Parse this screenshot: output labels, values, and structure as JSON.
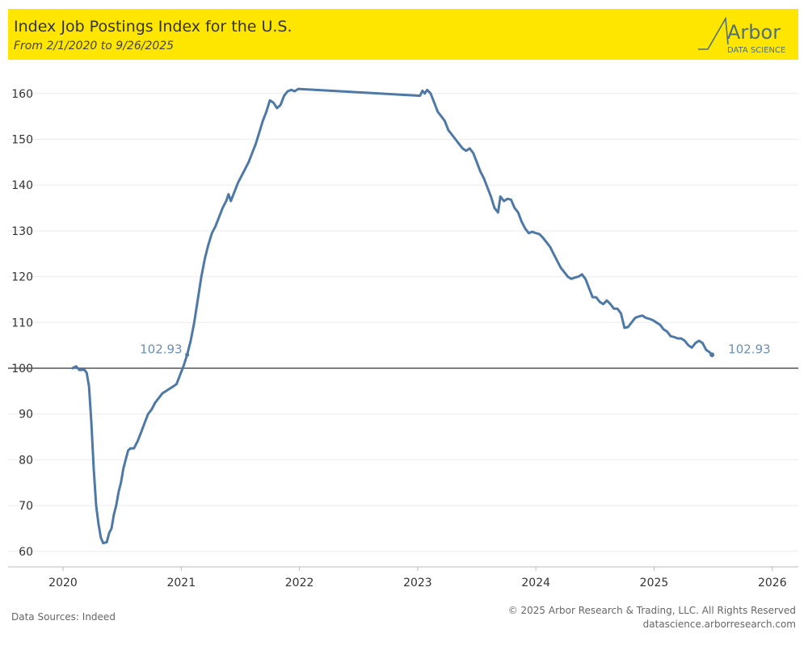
{
  "header": {
    "title": "Index Job Postings Index for the U.S.",
    "subtitle": "From 2/1/2020 to 9/26/2025",
    "background_color": "#ffe600",
    "logo": {
      "name": "Arbor",
      "tagline": "DATA SCIENCE",
      "color": "#4f7078"
    }
  },
  "footer": {
    "source": "Data Sources: Indeed",
    "copyright": "© 2025 Arbor Research & Trading, LLC. All Rights Reserved",
    "website": "datascience.arborresearch.com"
  },
  "chart_data": {
    "type": "line",
    "title": "Index Job Postings Index for the U.S.",
    "subtitle": "From 2/1/2020 to 9/26/2025",
    "xlabel": "",
    "ylabel": "",
    "x_ticks": [
      "2020",
      "2021",
      "2022",
      "2023",
      "2024",
      "2025",
      "2026"
    ],
    "y_ticks": [
      60,
      70,
      80,
      90,
      100,
      110,
      120,
      130,
      140,
      150,
      160
    ],
    "xlim": [
      2020,
      2026.3
    ],
    "ylim": [
      58,
      166
    ],
    "grid": "horizontal",
    "reference_line": 100,
    "line_color": "#4e79a7",
    "label_color": "#6b8fb5",
    "series": [
      {
        "points": [
          [
            2020.08,
            100.0
          ],
          [
            2020.11,
            100.4
          ],
          [
            2020.14,
            99.6
          ],
          [
            2020.18,
            99.7
          ],
          [
            2020.2,
            99.0
          ],
          [
            2020.22,
            96.0
          ],
          [
            2020.24,
            88.0
          ],
          [
            2020.26,
            78.0
          ],
          [
            2020.28,
            70.0
          ],
          [
            2020.3,
            66.0
          ],
          [
            2020.32,
            63.0
          ],
          [
            2020.34,
            61.8
          ],
          [
            2020.37,
            62.0
          ],
          [
            2020.39,
            64.0
          ],
          [
            2020.41,
            65.0
          ],
          [
            2020.43,
            68.0
          ],
          [
            2020.45,
            70.0
          ],
          [
            2020.47,
            73.0
          ],
          [
            2020.49,
            75.0
          ],
          [
            2020.51,
            78.0
          ],
          [
            2020.53,
            80.0
          ],
          [
            2020.55,
            82.0
          ],
          [
            2020.57,
            82.5
          ],
          [
            2020.6,
            82.5
          ],
          [
            2020.63,
            84.0
          ],
          [
            2020.66,
            86.0
          ],
          [
            2020.69,
            88.0
          ],
          [
            2020.72,
            90.0
          ],
          [
            2020.75,
            91.0
          ],
          [
            2020.78,
            92.5
          ],
          [
            2020.81,
            93.5
          ],
          [
            2020.84,
            94.5
          ],
          [
            2020.87,
            95.0
          ],
          [
            2020.9,
            95.5
          ],
          [
            2020.93,
            96.0
          ],
          [
            2020.96,
            96.5
          ],
          [
            2020.99,
            98.5
          ],
          [
            2021.02,
            100.5
          ],
          [
            2021.05,
            102.93
          ],
          [
            2021.08,
            106.0
          ],
          [
            2021.11,
            110.0
          ],
          [
            2021.14,
            115.0
          ],
          [
            2021.17,
            120.0
          ],
          [
            2021.2,
            124.0
          ],
          [
            2021.23,
            127.0
          ],
          [
            2021.26,
            129.5
          ],
          [
            2021.29,
            131.0
          ],
          [
            2021.32,
            133.0
          ],
          [
            2021.35,
            135.0
          ],
          [
            2021.38,
            136.5
          ],
          [
            2021.4,
            138.0
          ],
          [
            2021.42,
            136.5
          ],
          [
            2021.45,
            138.5
          ],
          [
            2021.48,
            140.5
          ],
          [
            2021.51,
            142.0
          ],
          [
            2021.54,
            143.5
          ],
          [
            2021.57,
            145.0
          ],
          [
            2021.6,
            147.0
          ],
          [
            2021.63,
            149.0
          ],
          [
            2021.66,
            151.5
          ],
          [
            2021.69,
            154.0
          ],
          [
            2021.72,
            156.0
          ],
          [
            2021.75,
            158.5
          ],
          [
            2021.78,
            158.0
          ],
          [
            2021.81,
            156.8
          ],
          [
            2021.84,
            157.5
          ],
          [
            2021.87,
            159.5
          ],
          [
            2021.9,
            160.5
          ],
          [
            2021.93,
            160.8
          ],
          [
            2021.96,
            160.5
          ],
          [
            2021.99,
            161.0
          ],
          [
            2022.02,
            159.5
          ],
          [
            2022.04,
            160.6
          ],
          [
            2022.06,
            160.0
          ],
          [
            2022.08,
            160.8
          ],
          [
            2022.11,
            160.0
          ],
          [
            2022.14,
            158.0
          ],
          [
            2022.17,
            156.0
          ],
          [
            2022.2,
            155.0
          ],
          [
            2022.23,
            154.0
          ],
          [
            2022.26,
            152.0
          ],
          [
            2022.29,
            151.0
          ],
          [
            2022.32,
            150.0
          ],
          [
            2022.35,
            149.0
          ],
          [
            2022.38,
            148.0
          ],
          [
            2022.41,
            147.5
          ],
          [
            2022.44,
            148.0
          ],
          [
            2022.47,
            147.0
          ],
          [
            2022.5,
            145.0
          ],
          [
            2022.53,
            143.0
          ],
          [
            2022.56,
            141.5
          ],
          [
            2022.59,
            139.5
          ],
          [
            2022.62,
            137.5
          ],
          [
            2022.65,
            135.0
          ],
          [
            2022.68,
            134.0
          ],
          [
            2022.7,
            137.5
          ],
          [
            2022.73,
            136.5
          ],
          [
            2022.76,
            137.0
          ],
          [
            2022.79,
            136.8
          ],
          [
            2022.82,
            135.0
          ],
          [
            2022.85,
            134.0
          ],
          [
            2022.88,
            132.0
          ],
          [
            2022.91,
            130.5
          ],
          [
            2022.94,
            129.5
          ],
          [
            2022.97,
            129.8
          ],
          [
            2023.0,
            129.5
          ],
          [
            2023.03,
            129.3
          ],
          [
            2023.06,
            128.5
          ],
          [
            2023.09,
            127.5
          ],
          [
            2023.12,
            126.5
          ],
          [
            2023.15,
            125.0
          ],
          [
            2023.18,
            123.5
          ],
          [
            2023.21,
            122.0
          ],
          [
            2023.24,
            121.0
          ],
          [
            2023.27,
            120.0
          ],
          [
            2023.3,
            119.5
          ],
          [
            2023.33,
            119.8
          ],
          [
            2023.36,
            120.0
          ],
          [
            2023.39,
            120.5
          ],
          [
            2023.42,
            119.5
          ],
          [
            2023.45,
            117.5
          ],
          [
            2023.48,
            115.5
          ],
          [
            2023.51,
            115.5
          ],
          [
            2023.54,
            114.5
          ],
          [
            2023.57,
            114.0
          ],
          [
            2023.6,
            114.8
          ],
          [
            2023.63,
            114.0
          ],
          [
            2023.66,
            113.0
          ],
          [
            2023.69,
            113.0
          ],
          [
            2023.72,
            112.0
          ],
          [
            2023.75,
            108.8
          ],
          [
            2023.78,
            109.0
          ],
          [
            2023.81,
            110.0
          ],
          [
            2023.84,
            111.0
          ],
          [
            2023.87,
            111.3
          ],
          [
            2023.9,
            111.5
          ],
          [
            2023.93,
            111.0
          ],
          [
            2023.96,
            110.8
          ],
          [
            2023.99,
            110.5
          ],
          [
            2024.02,
            110.0
          ],
          [
            2024.05,
            109.5
          ],
          [
            2024.08,
            108.5
          ],
          [
            2024.11,
            108.0
          ],
          [
            2024.14,
            107.0
          ],
          [
            2024.17,
            106.8
          ],
          [
            2024.2,
            106.5
          ],
          [
            2024.23,
            106.5
          ],
          [
            2024.26,
            106.0
          ],
          [
            2024.29,
            105.0
          ],
          [
            2024.32,
            104.5
          ],
          [
            2024.35,
            105.5
          ],
          [
            2024.38,
            106.0
          ],
          [
            2024.41,
            105.5
          ],
          [
            2024.44,
            104.0
          ],
          [
            2024.47,
            103.5
          ],
          [
            2024.49,
            102.93
          ]
        ]
      }
    ],
    "point_x_offset": 1,
    "data_labels": [
      {
        "value": "102.93",
        "anchor": "2021-02"
      },
      {
        "value": "102.93",
        "anchor": "2025-09"
      }
    ]
  }
}
